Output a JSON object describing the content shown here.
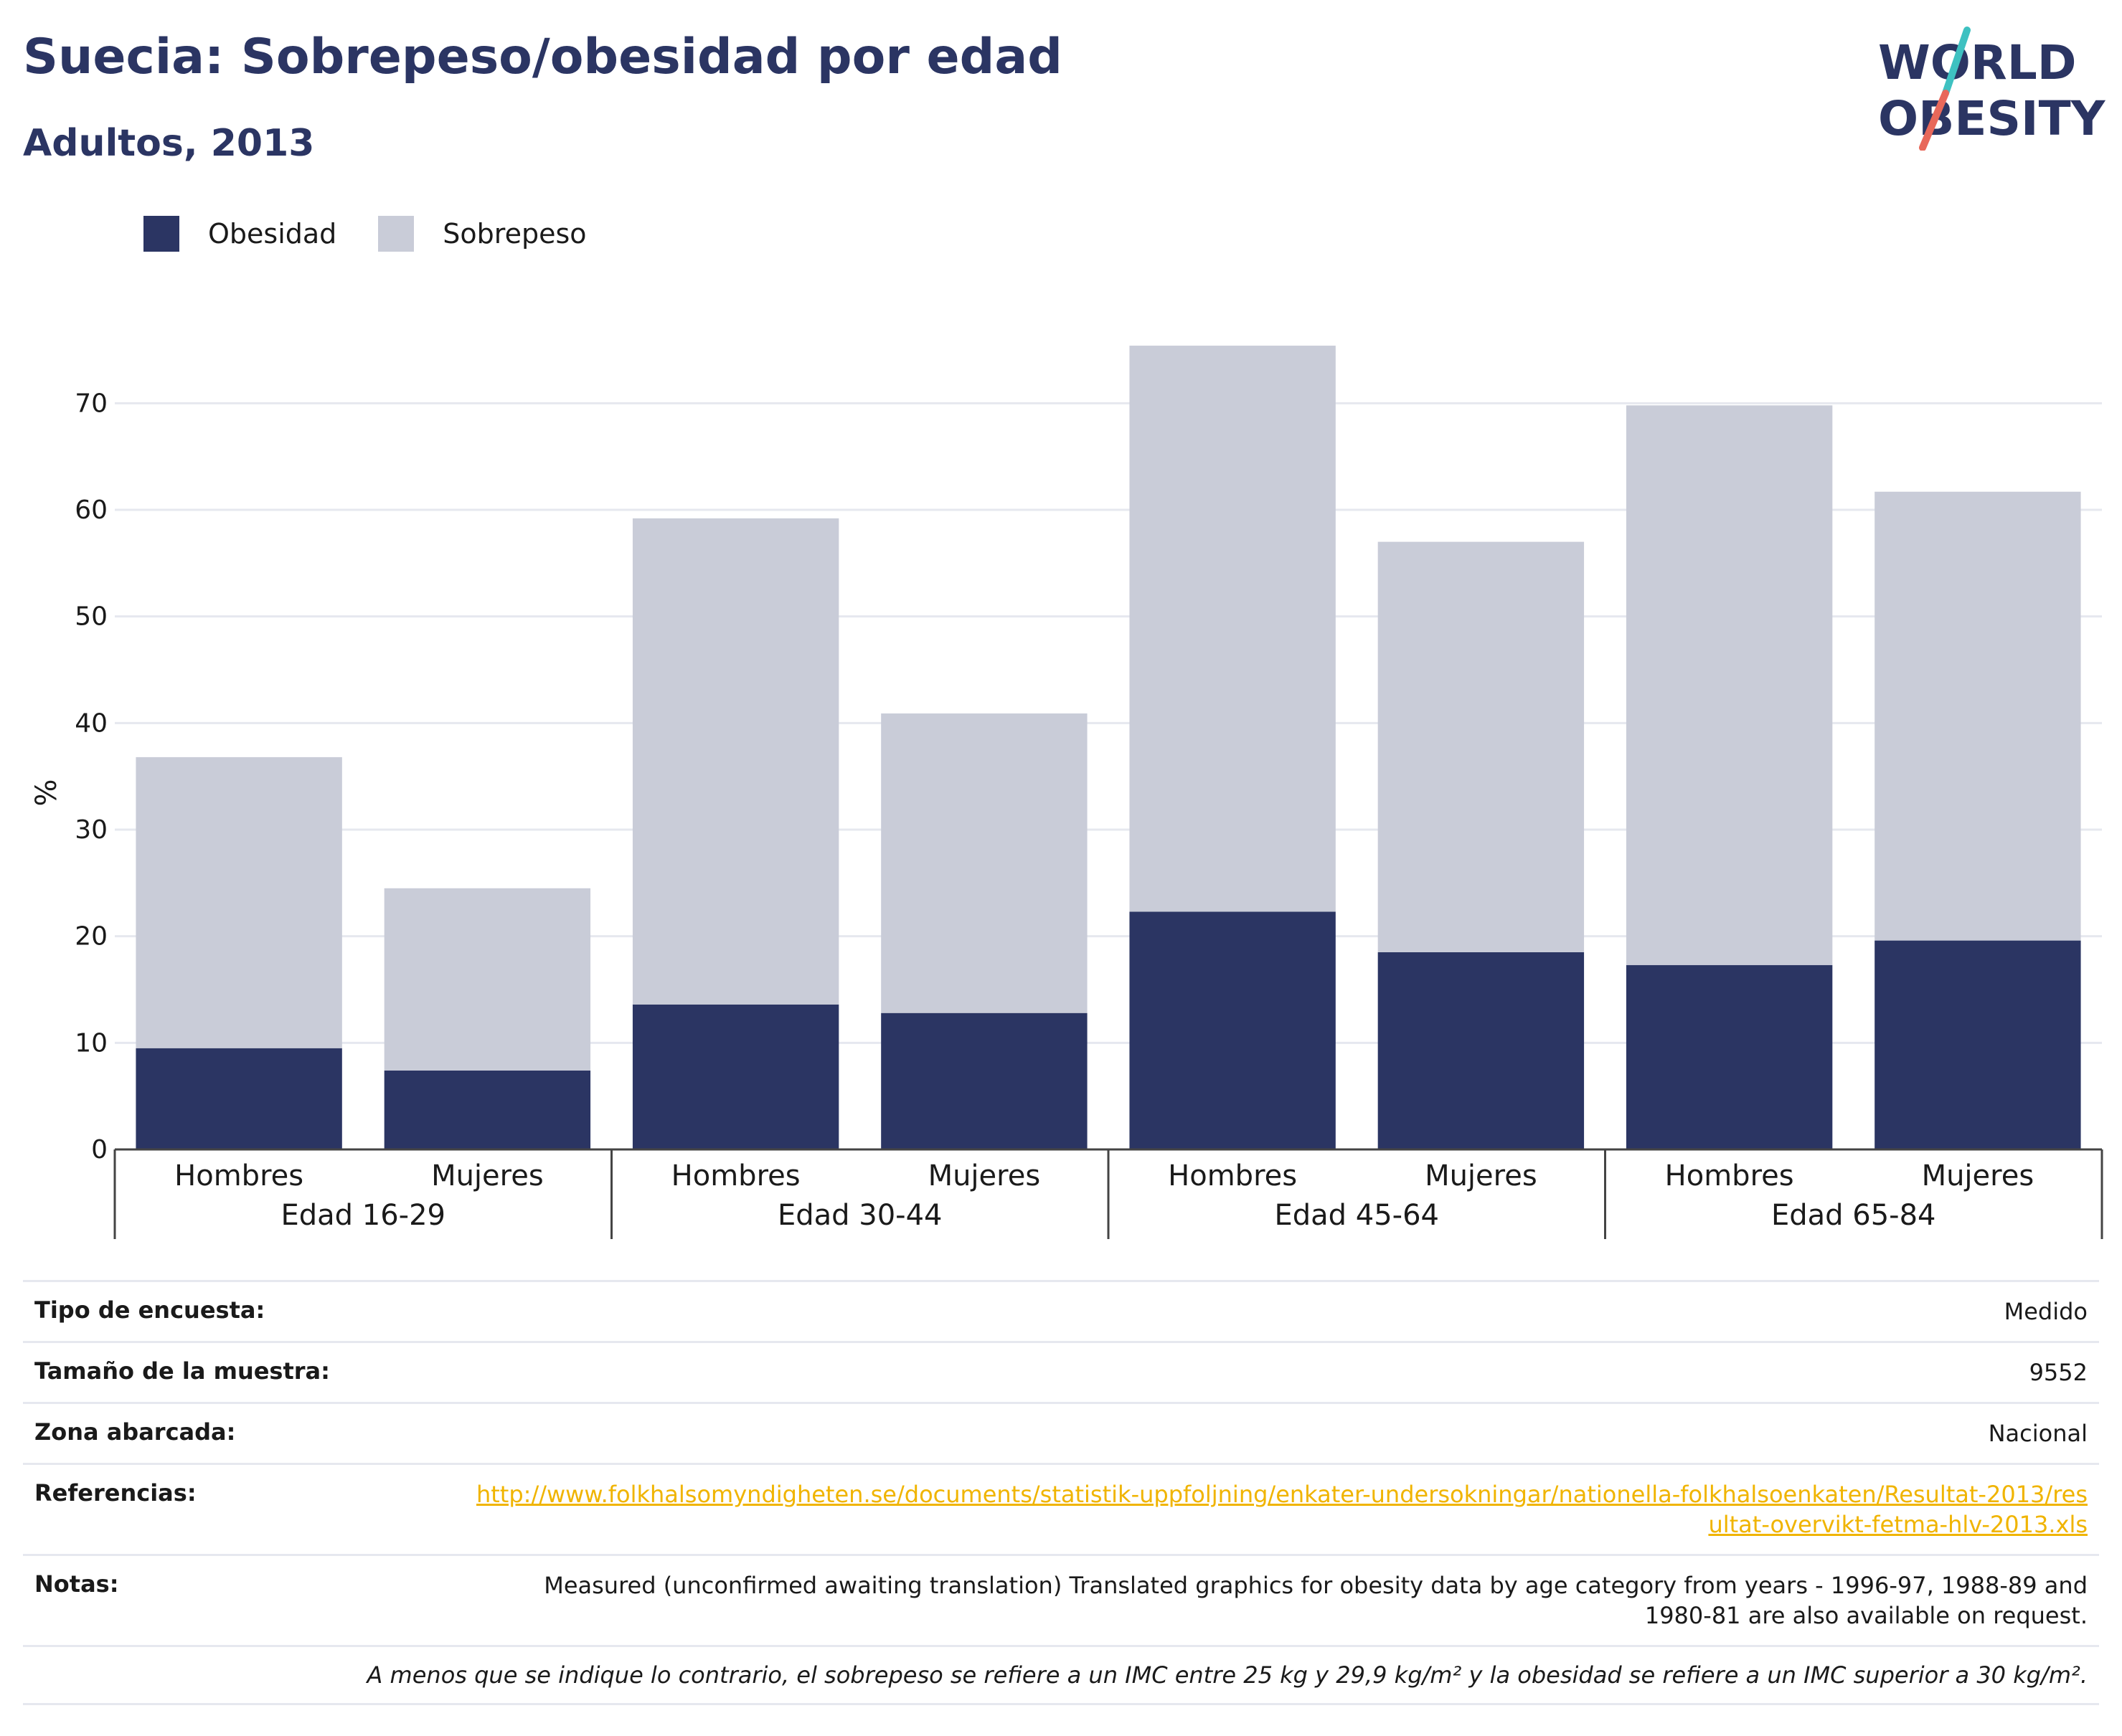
{
  "header": {
    "title": "Suecia: Sobrepeso/obesidad por edad",
    "subtitle": "Adultos, 2013"
  },
  "logo": {
    "line1": "WORLD",
    "line2": "OBESITY",
    "slash_colors": [
      "#3ec1c1",
      "#e8685a"
    ]
  },
  "legend": [
    {
      "label": "Obesidad",
      "color": "#2b3563"
    },
    {
      "label": "Sobrepeso",
      "color": "#c9ccd8"
    }
  ],
  "chart_data": {
    "type": "bar",
    "stacked": true,
    "ylabel": "%",
    "ylim": [
      0,
      75
    ],
    "yticks": [
      0,
      10,
      20,
      30,
      40,
      50,
      60,
      70
    ],
    "grid": true,
    "legend_position": "top-left",
    "groups": [
      "Edad 16-29",
      "Edad 30-44",
      "Edad 45-64",
      "Edad 65-84"
    ],
    "subcategories": [
      "Hombres",
      "Mujeres"
    ],
    "categories": [
      "Hombres",
      "Mujeres",
      "Hombres",
      "Mujeres",
      "Hombres",
      "Mujeres",
      "Hombres",
      "Mujeres"
    ],
    "series": [
      {
        "name": "Obesidad",
        "color": "#2b3563",
        "values": [
          9.5,
          7.4,
          13.6,
          12.8,
          22.3,
          18.5,
          17.3,
          19.6
        ]
      },
      {
        "name": "Sobrepeso",
        "color": "#c9ccd8",
        "values": [
          27.3,
          17.1,
          45.6,
          28.1,
          53.1,
          38.5,
          52.5,
          42.1
        ]
      }
    ]
  },
  "info": {
    "survey_type": {
      "label": "Tipo de encuesta:",
      "value": "Medido"
    },
    "sample_size": {
      "label": "Tamaño de la muestra:",
      "value": "9552"
    },
    "area": {
      "label": "Zona abarcada:",
      "value": "Nacional"
    },
    "references": {
      "label": "Referencias:",
      "value": "http://www.folkhalsomyndigheten.se/documents/statistik-uppfoljning/enkater-undersokningar/nationella-folkhalsoenkaten/Resultat-2013/resultat-overvikt-fetma-hlv-2013.xls"
    },
    "notes": {
      "label": "Notas:",
      "value": "Measured (unconfirmed awaiting translation) Translated graphics for obesity data by age category from years - 1996-97, 1988-89 and 1980-81 are also available on request."
    },
    "footnote": "A menos que se indique lo contrario, el sobrepeso se refiere a un IMC entre 25 kg y 29,9 kg/m² y la obesidad se refiere a un IMC superior a 30 kg/m²."
  }
}
